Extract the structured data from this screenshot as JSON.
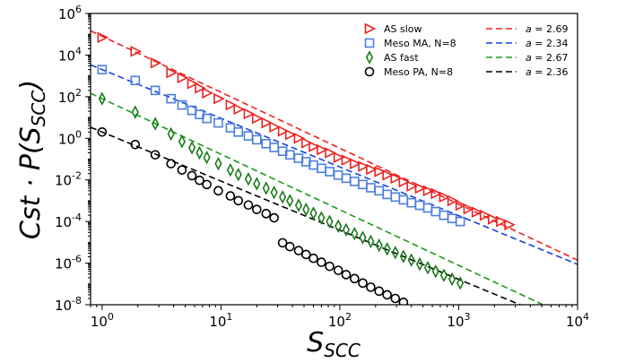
{
  "chart_data": {
    "type": "scatter",
    "xscale": "log",
    "yscale": "log",
    "xlim": [
      0.8,
      10000
    ],
    "ylim": [
      1e-08,
      1000000
    ],
    "x_ticks": [
      {
        "value": 1,
        "base": "10",
        "exp": "0"
      },
      {
        "value": 10,
        "base": "10",
        "exp": "1"
      },
      {
        "value": 100,
        "base": "10",
        "exp": "2"
      },
      {
        "value": 1000,
        "base": "10",
        "exp": "3"
      },
      {
        "value": 10000,
        "base": "10",
        "exp": "4"
      }
    ],
    "y_ticks": [
      {
        "value": 1e-08,
        "base": "10",
        "exp": "-8"
      },
      {
        "value": 1e-06,
        "base": "10",
        "exp": "-6"
      },
      {
        "value": 0.0001,
        "base": "10",
        "exp": "-4"
      },
      {
        "value": 0.01,
        "base": "10",
        "exp": "-2"
      },
      {
        "value": 1,
        "base": "10",
        "exp": "0"
      },
      {
        "value": 100,
        "base": "10",
        "exp": "2"
      },
      {
        "value": 10000,
        "base": "10",
        "exp": "4"
      },
      {
        "value": 1000000,
        "base": "10",
        "exp": "6"
      }
    ],
    "xlabel": {
      "main": "S",
      "sub": "SCC"
    },
    "ylabel": {
      "parts": [
        "Cst · P(S",
        "SCC",
        ")"
      ]
    },
    "legend_placement": "top-right",
    "series": [
      {
        "name": "AS slow",
        "marker": "triangle-right",
        "color": "#ee2222",
        "points": [
          [
            1.0,
            70000
          ],
          [
            1.9,
            15000
          ],
          [
            2.8,
            4200
          ],
          [
            3.8,
            1400
          ],
          [
            4.7,
            800
          ],
          [
            5.7,
            420
          ],
          [
            6.6,
            260
          ],
          [
            7.6,
            150
          ],
          [
            9.5,
            80
          ],
          [
            12,
            40
          ],
          [
            14,
            25
          ],
          [
            17,
            15
          ],
          [
            20,
            9
          ],
          [
            24,
            5.5
          ],
          [
            28,
            3.5
          ],
          [
            33,
            2.2
          ],
          [
            38,
            1.5
          ],
          [
            45,
            1.0
          ],
          [
            52,
            0.6
          ],
          [
            60,
            0.4
          ],
          [
            70,
            0.28
          ],
          [
            82,
            0.2
          ],
          [
            97,
            0.12
          ],
          [
            113,
            0.09
          ],
          [
            133,
            0.06
          ],
          [
            156,
            0.045
          ],
          [
            182,
            0.032
          ],
          [
            214,
            0.025
          ],
          [
            250,
            0.017
          ],
          [
            293,
            0.012
          ],
          [
            343,
            0.008
          ],
          [
            400,
            0.005
          ],
          [
            470,
            0.004
          ],
          [
            550,
            0.003
          ],
          [
            640,
            0.0022
          ],
          [
            750,
            0.0015
          ],
          [
            880,
            0.001
          ],
          [
            1030,
            0.0006
          ],
          [
            1200,
            0.0004
          ],
          [
            1410,
            0.00028
          ],
          [
            1650,
            0.0002
          ],
          [
            1930,
            0.00013
          ],
          [
            2260,
            0.0001
          ],
          [
            2650,
            7e-05
          ]
        ]
      },
      {
        "name": "Meso MA, N=8",
        "marker": "square",
        "color": "#4a7fe0",
        "points": [
          [
            1.0,
            2000
          ],
          [
            1.9,
            600
          ],
          [
            2.8,
            200
          ],
          [
            3.8,
            80
          ],
          [
            4.7,
            40
          ],
          [
            5.7,
            22
          ],
          [
            6.6,
            14
          ],
          [
            7.6,
            9
          ],
          [
            9.5,
            5.5
          ],
          [
            12,
            3.2
          ],
          [
            14,
            2.0
          ],
          [
            17,
            1.3
          ],
          [
            20,
            0.85
          ],
          [
            24,
            0.55
          ],
          [
            28,
            0.36
          ],
          [
            33,
            0.24
          ],
          [
            38,
            0.16
          ],
          [
            45,
            0.11
          ],
          [
            52,
            0.075
          ],
          [
            60,
            0.052
          ],
          [
            70,
            0.036
          ],
          [
            82,
            0.025
          ],
          [
            97,
            0.017
          ],
          [
            113,
            0.012
          ],
          [
            133,
            0.0085
          ],
          [
            156,
            0.006
          ],
          [
            182,
            0.0042
          ],
          [
            214,
            0.003
          ],
          [
            250,
            0.002
          ],
          [
            293,
            0.0015
          ],
          [
            343,
            0.0011
          ],
          [
            400,
            0.0008
          ],
          [
            470,
            0.0006
          ],
          [
            550,
            0.00045
          ],
          [
            640,
            0.0003
          ],
          [
            750,
            0.0002
          ],
          [
            880,
            0.00014
          ],
          [
            1030,
            0.0001
          ]
        ]
      },
      {
        "name": "AS fast",
        "marker": "thin-diamond",
        "color": "#1a7a1a",
        "points": [
          [
            1.0,
            80
          ],
          [
            1.9,
            18
          ],
          [
            2.8,
            5
          ],
          [
            3.8,
            1.6
          ],
          [
            4.7,
            0.7
          ],
          [
            5.7,
            0.35
          ],
          [
            6.6,
            0.2
          ],
          [
            7.6,
            0.12
          ],
          [
            9.5,
            0.06
          ],
          [
            12,
            0.03
          ],
          [
            14,
            0.018
          ],
          [
            17,
            0.011
          ],
          [
            20,
            0.0065
          ],
          [
            24,
            0.004
          ],
          [
            28,
            0.0025
          ],
          [
            33,
            0.0015
          ],
          [
            38,
            0.001
          ],
          [
            45,
            0.0006
          ],
          [
            52,
            0.00038
          ],
          [
            60,
            0.00025
          ],
          [
            70,
            0.00015
          ],
          [
            82,
            0.0001
          ],
          [
            97,
            6e-05
          ],
          [
            113,
            4e-05
          ],
          [
            133,
            2.6e-05
          ],
          [
            156,
            1.7e-05
          ],
          [
            182,
            1.1e-05
          ],
          [
            214,
            7.2e-06
          ],
          [
            250,
            4.8e-06
          ],
          [
            293,
            3.2e-06
          ],
          [
            343,
            2.1e-06
          ],
          [
            400,
            1.4e-06
          ],
          [
            470,
            9e-07
          ],
          [
            550,
            6e-07
          ],
          [
            640,
            4e-07
          ],
          [
            750,
            2.6e-07
          ],
          [
            880,
            1.7e-07
          ],
          [
            1030,
            1.1e-07
          ]
        ]
      },
      {
        "name": "Meso PA, N=8",
        "marker": "circle",
        "color": "#000000",
        "points": [
          [
            1.0,
            2
          ],
          [
            1.9,
            0.5
          ],
          [
            2.8,
            0.16
          ],
          [
            3.8,
            0.06
          ],
          [
            4.7,
            0.03
          ],
          [
            5.7,
            0.016
          ],
          [
            6.6,
            0.0095
          ],
          [
            7.6,
            0.006
          ],
          [
            9.5,
            0.003
          ],
          [
            12,
            0.0017
          ],
          [
            14,
            0.001
          ],
          [
            17,
            0.00062
          ],
          [
            20,
            0.00038
          ],
          [
            24,
            0.00024
          ],
          [
            28,
            0.00015
          ],
          [
            33,
            9.5e-06
          ],
          [
            38,
            6.2e-06
          ],
          [
            45,
            4e-06
          ],
          [
            52,
            2.6e-06
          ],
          [
            60,
            1.7e-06
          ],
          [
            70,
            1.1e-06
          ],
          [
            82,
            7e-07
          ],
          [
            97,
            4.5e-07
          ],
          [
            113,
            2.8e-07
          ],
          [
            133,
            1.8e-07
          ],
          [
            156,
            1.1e-07
          ],
          [
            182,
            7e-08
          ],
          [
            214,
            4.5e-08
          ],
          [
            250,
            3e-08
          ],
          [
            293,
            2e-08
          ],
          [
            343,
            1.3e-08
          ]
        ]
      }
    ],
    "fits": [
      {
        "label": "a = 2.69",
        "a": "2.69",
        "slope": -2.69,
        "y_at_1": 80000,
        "color": "#ee2222"
      },
      {
        "label": "a = 2.34",
        "a": "2.34",
        "slope": -2.34,
        "y_at_1": 2000,
        "color": "#1a3fe0"
      },
      {
        "label": "a = 2.67",
        "a": "2.67",
        "slope": -2.67,
        "y_at_1": 80,
        "color": "#1a9a1a"
      },
      {
        "label": "a = 2.36",
        "a": "2.36",
        "slope": -2.36,
        "y_at_1": 2,
        "color": "#000000"
      }
    ]
  }
}
